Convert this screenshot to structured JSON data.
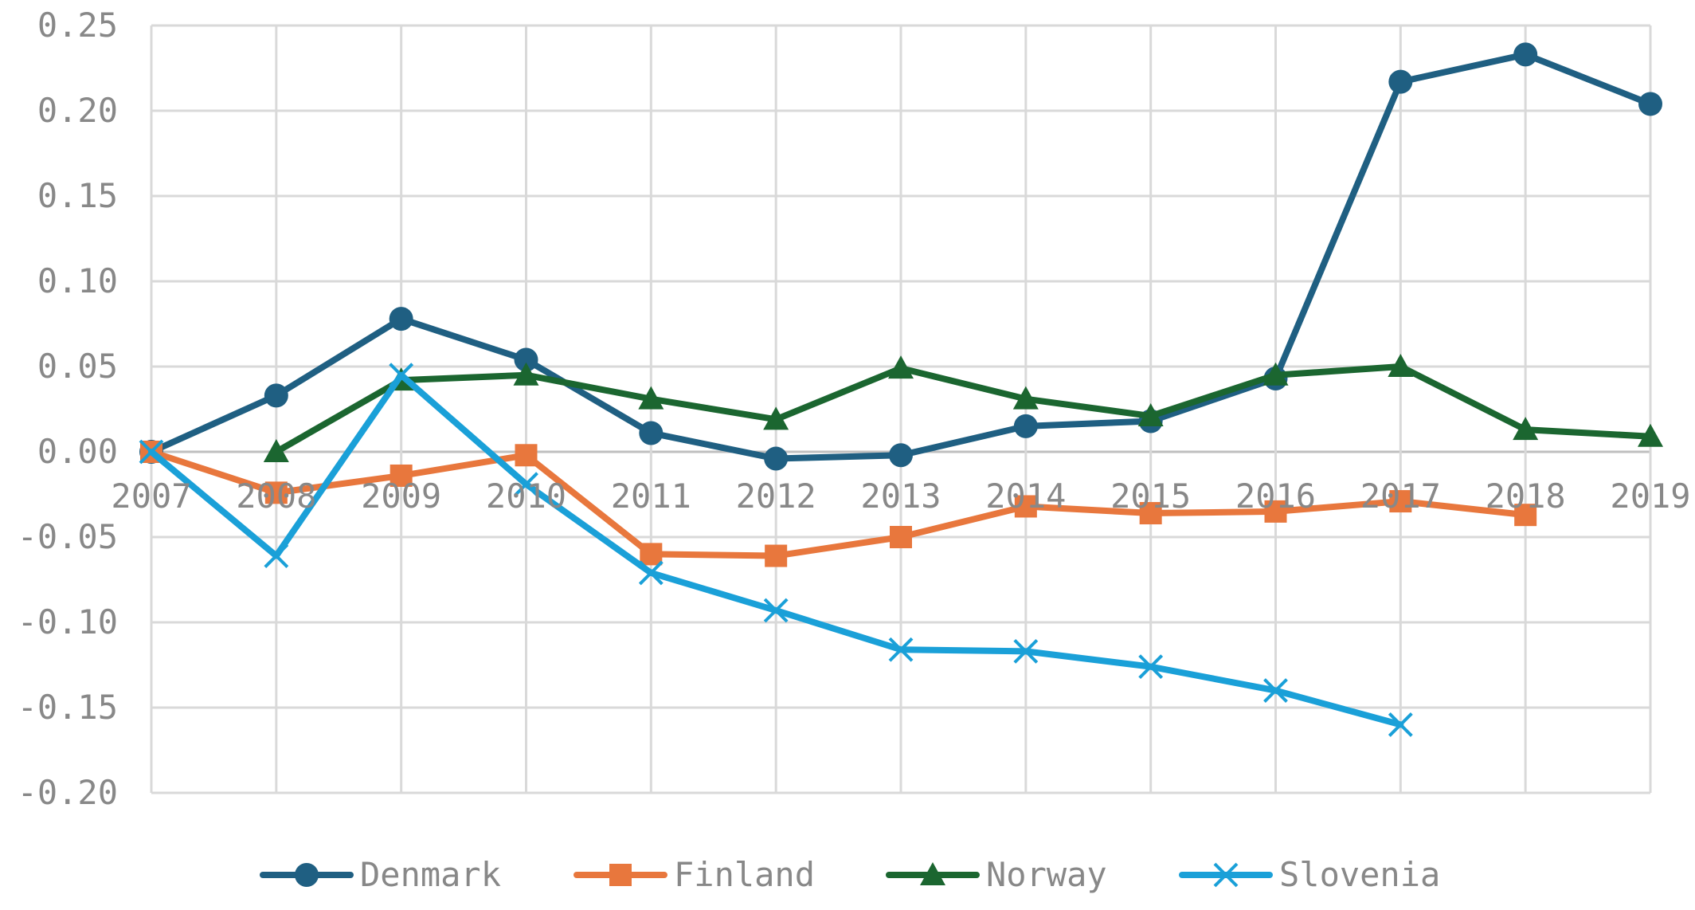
{
  "chart_data": {
    "type": "line",
    "x": [
      "2007",
      "2008",
      "2009",
      "2010",
      "2011",
      "2012",
      "2013",
      "2014",
      "2015",
      "2016",
      "2017",
      "2018",
      "2019"
    ],
    "ylim": [
      -0.2,
      0.25
    ],
    "yticks": [
      "0.25",
      "0.20",
      "0.15",
      "0.10",
      "0.05",
      "0.00",
      "-0.05",
      "-0.10",
      "-0.15",
      "-0.20"
    ],
    "grid": true,
    "legend_position": "bottom",
    "series": [
      {
        "name": "Denmark",
        "color": "#1f5f82",
        "marker": "circle",
        "values": [
          0.0,
          0.033,
          0.078,
          0.054,
          0.011,
          -0.004,
          -0.002,
          0.015,
          0.018,
          0.043,
          0.217,
          0.233,
          0.204
        ]
      },
      {
        "name": "Finland",
        "color": "#e8773d",
        "marker": "square",
        "values": [
          0.0,
          -0.024,
          -0.014,
          -0.002,
          -0.06,
          -0.061,
          -0.05,
          -0.032,
          -0.036,
          -0.035,
          -0.029,
          -0.037,
          null
        ]
      },
      {
        "name": "Norway",
        "color": "#1b6630",
        "marker": "triangle",
        "values": [
          null,
          0.0,
          0.042,
          0.045,
          0.031,
          0.019,
          0.049,
          0.031,
          0.021,
          0.045,
          0.05,
          0.013,
          0.009
        ]
      },
      {
        "name": "Slovenia",
        "color": "#1aa0d8",
        "marker": "x",
        "values": [
          0.0,
          -0.061,
          0.045,
          -0.019,
          -0.071,
          -0.093,
          -0.116,
          -0.117,
          -0.126,
          -0.14,
          -0.16,
          null,
          null
        ]
      }
    ]
  }
}
